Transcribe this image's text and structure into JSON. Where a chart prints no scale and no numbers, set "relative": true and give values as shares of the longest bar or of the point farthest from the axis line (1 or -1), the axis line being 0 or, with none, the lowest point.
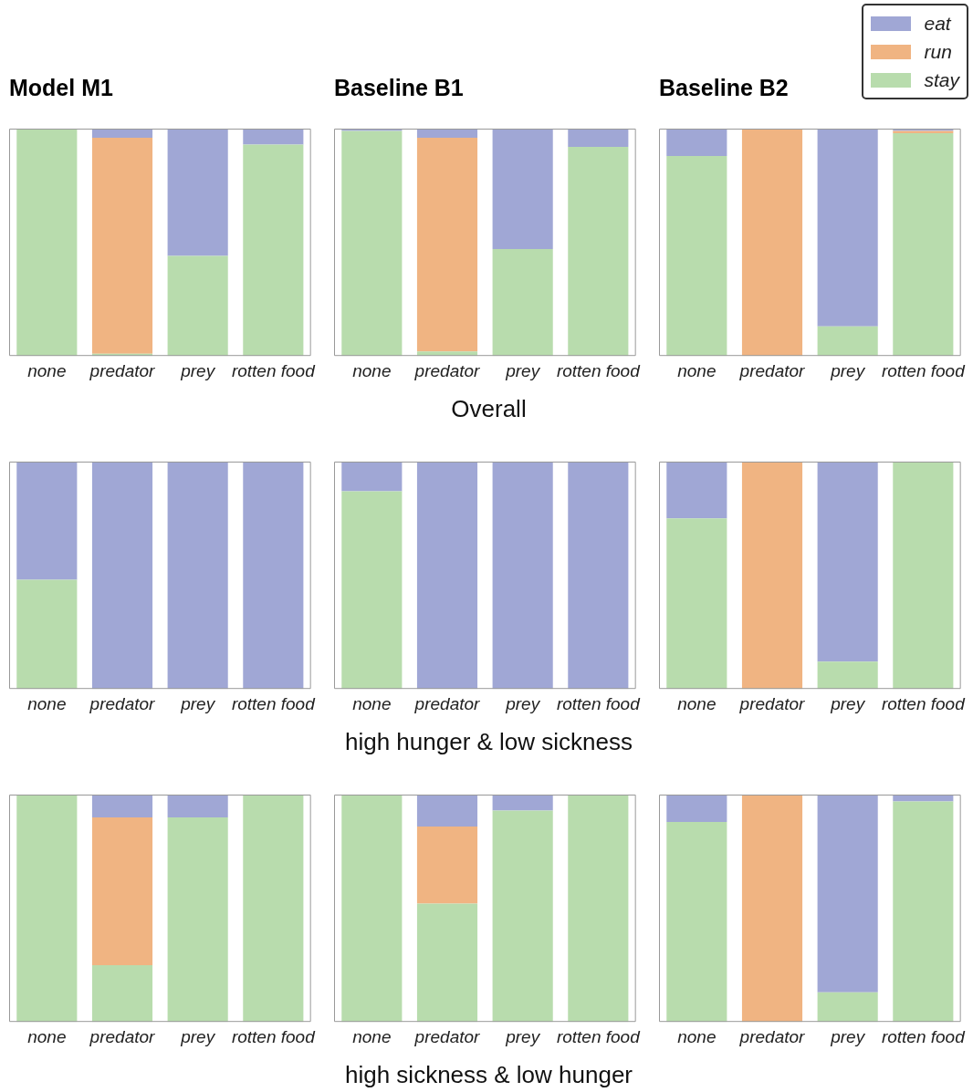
{
  "chart_data": [
    {
      "type": "bar",
      "title": "Model M1",
      "stacked": true,
      "relative": true,
      "categories": [
        "none",
        "predator",
        "prey",
        "rotten food"
      ],
      "series": [
        {
          "color": "#b8dcad",
          "values": [
            1,
            0.01,
            0.44,
            0.93
          ]
        },
        {
          "color": "#f0b482",
          "values": [
            0,
            0.95,
            0,
            0
          ]
        },
        {
          "color": "#a0a7d5",
          "values": [
            0,
            0.04,
            0.56,
            0.07
          ]
        }
      ]
    },
    {
      "type": "bar",
      "title": "Baseline B1",
      "xlabel": "Overall",
      "stacked": true,
      "relative": true,
      "categories": [
        "none",
        "predator",
        "prey",
        "rotten food"
      ],
      "series": [
        {
          "color": "#b8dcad",
          "values": [
            0.99,
            0.02,
            0.47,
            0.92
          ]
        },
        {
          "color": "#f0b482",
          "values": [
            0,
            0.94,
            0,
            0
          ]
        },
        {
          "color": "#a0a7d5",
          "values": [
            0.01,
            0.04,
            0.53,
            0.08
          ]
        }
      ]
    },
    {
      "type": "bar",
      "title": "Baseline B2",
      "stacked": true,
      "relative": true,
      "legend": "top right",
      "categories": [
        "none",
        "predator",
        "prey",
        "rotten food"
      ],
      "series": [
        {
          "name": "stay",
          "color": "#b8dcad",
          "values": [
            0.88,
            0,
            0.13,
            0.98
          ]
        },
        {
          "name": "run",
          "color": "#f0b482",
          "values": [
            0,
            1,
            0,
            0.01
          ]
        },
        {
          "name": "eat",
          "color": "#a0a7d5",
          "values": [
            0.12,
            0,
            0.87,
            0.01
          ]
        }
      ]
    },
    {
      "type": "bar",
      "stacked": true,
      "relative": true,
      "categories": [
        "none",
        "predator",
        "prey",
        "rotten food"
      ],
      "series": [
        {
          "color": "#b8dcad",
          "values": [
            0.48,
            0,
            0,
            0
          ]
        },
        {
          "color": "#a0a7d5",
          "values": [
            0.52,
            1,
            1,
            1
          ]
        }
      ]
    },
    {
      "type": "bar",
      "xlabel": "high hunger & low sickness",
      "stacked": true,
      "relative": true,
      "categories": [
        "none",
        "predator",
        "prey",
        "rotten food"
      ],
      "series": [
        {
          "color": "#b8dcad",
          "values": [
            0.87,
            0,
            0,
            0
          ]
        },
        {
          "color": "#a0a7d5",
          "values": [
            0.13,
            1,
            1,
            1
          ]
        }
      ]
    },
    {
      "type": "bar",
      "stacked": true,
      "relative": true,
      "categories": [
        "none",
        "predator",
        "prey",
        "rotten food"
      ],
      "series": [
        {
          "color": "#b8dcad",
          "values": [
            0.75,
            0,
            0.12,
            1
          ]
        },
        {
          "color": "#f0b482",
          "values": [
            0,
            1,
            0,
            0
          ]
        },
        {
          "color": "#a0a7d5",
          "values": [
            0.25,
            0,
            0.88,
            0
          ]
        }
      ]
    },
    {
      "type": "bar",
      "stacked": true,
      "relative": true,
      "categories": [
        "none",
        "predator",
        "prey",
        "rotten food"
      ],
      "series": [
        {
          "color": "#b8dcad",
          "values": [
            1,
            0.25,
            0.9,
            1
          ]
        },
        {
          "color": "#f0b482",
          "values": [
            0,
            0.65,
            0,
            0
          ]
        },
        {
          "color": "#a0a7d5",
          "values": [
            0,
            0.1,
            0.1,
            0
          ]
        }
      ]
    },
    {
      "type": "bar",
      "xlabel": "high sickness & low hunger",
      "stacked": true,
      "relative": true,
      "categories": [
        "none",
        "predator",
        "prey",
        "rotten food"
      ],
      "series": [
        {
          "color": "#b8dcad",
          "values": [
            1,
            0.52,
            0.93,
            1
          ]
        },
        {
          "color": "#f0b482",
          "values": [
            0,
            0.34,
            0,
            0
          ]
        },
        {
          "color": "#a0a7d5",
          "values": [
            0,
            0.14,
            0.07,
            0
          ]
        }
      ]
    },
    {
      "type": "bar",
      "stacked": true,
      "relative": true,
      "categories": [
        "none",
        "predator",
        "prey",
        "rotten food"
      ],
      "series": [
        {
          "color": "#b8dcad",
          "values": [
            0.88,
            0,
            0.13,
            0.97
          ]
        },
        {
          "color": "#f0b482",
          "values": [
            0,
            1,
            0,
            0
          ]
        },
        {
          "color": "#a0a7d5",
          "values": [
            0.12,
            0,
            0.87,
            0.03
          ]
        }
      ]
    }
  ]
}
